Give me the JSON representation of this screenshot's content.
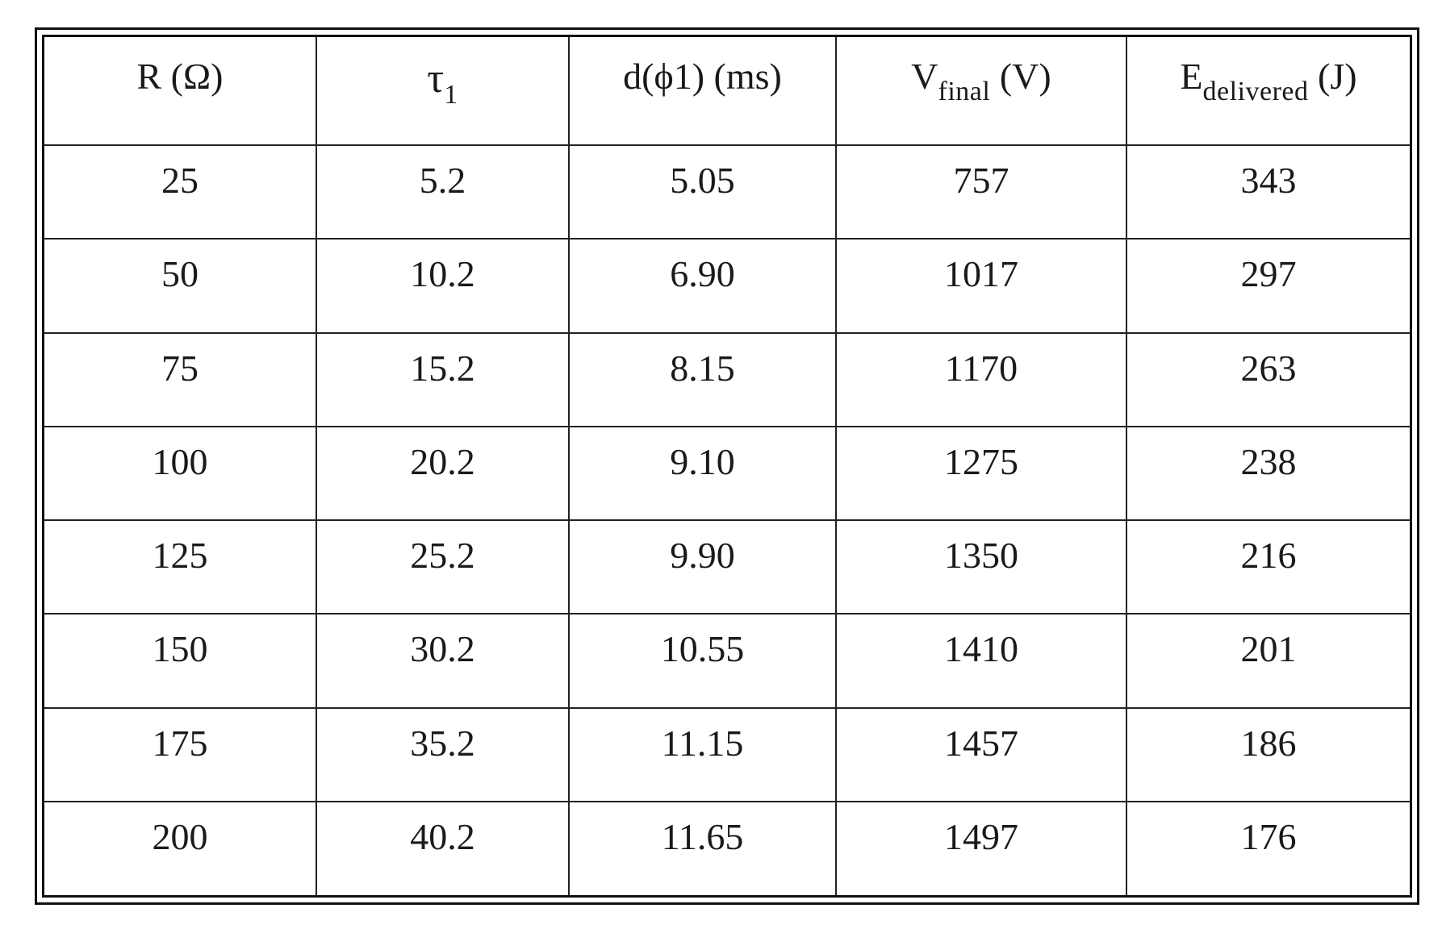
{
  "table": {
    "headers": [
      {
        "main": "R (Ω)",
        "sub": "",
        "suffix": ""
      },
      {
        "main": "τ",
        "sub": "1",
        "suffix": ""
      },
      {
        "main": "d(ϕ1) (ms)",
        "sub": "",
        "suffix": ""
      },
      {
        "main": "V",
        "sub": "final",
        "suffix": " (V)"
      },
      {
        "main": "E",
        "sub": "delivered",
        "suffix": " (J)"
      }
    ],
    "rows": [
      [
        "25",
        "5.2",
        "5.05",
        "757",
        "343"
      ],
      [
        "50",
        "10.2",
        "6.90",
        "1017",
        "297"
      ],
      [
        "75",
        "15.2",
        "8.15",
        "1170",
        "263"
      ],
      [
        "100",
        "20.2",
        "9.10",
        "1275",
        "238"
      ],
      [
        "125",
        "25.2",
        "9.90",
        "1350",
        "216"
      ],
      [
        "150",
        "30.2",
        "10.55",
        "1410",
        "201"
      ],
      [
        "175",
        "35.2",
        "11.15",
        "1457",
        "186"
      ],
      [
        "200",
        "40.2",
        "11.65",
        "1497",
        "176"
      ]
    ]
  }
}
